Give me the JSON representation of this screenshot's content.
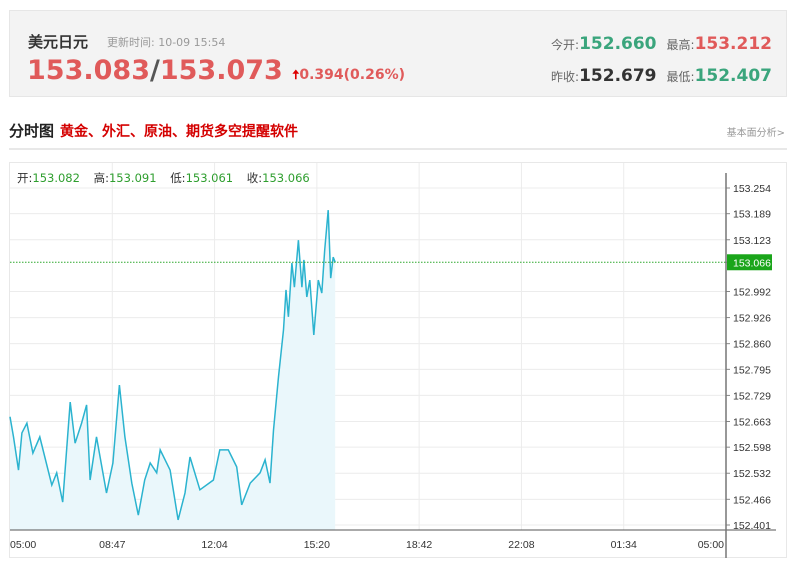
{
  "header": {
    "name": "美元日元",
    "update_label": "更新时间:",
    "update_time": "10-09 15:54",
    "bid": "153.083",
    "sep": "/",
    "ask": "153.073",
    "change": "0.394(0.26%)",
    "change_icon": "arrow-up",
    "stats": {
      "open_label": "今开:",
      "open": "152.660",
      "high_label": "最高:",
      "high": "153.212",
      "prev_label": "昨收:",
      "prev": "152.679",
      "low_label": "最低:",
      "low": "152.407"
    }
  },
  "section": {
    "title": "分时图",
    "ad": "黄金、外汇、原油、期货多空提醒软件",
    "link": "基本面分析>"
  },
  "ohlc": {
    "open_label": "开:",
    "open": "153.082",
    "high_label": "高:",
    "high": "153.091",
    "low_label": "低:",
    "low": "153.061",
    "close_label": "收:",
    "close": "153.066"
  },
  "colors": {
    "line": "#2bb3cf",
    "fill": "#eaf7fb",
    "last_badge": "#1aa51a",
    "up": "#e05a5a",
    "down": "#3aa57c"
  },
  "chart_data": {
    "type": "area",
    "x_ticks": [
      "05:00",
      "08:47",
      "12:04",
      "15:20",
      "18:42",
      "22:08",
      "01:34",
      "05:00"
    ],
    "y_ticks": [
      "153.254",
      "153.189",
      "153.123",
      "153.066",
      "152.992",
      "152.926",
      "152.860",
      "152.795",
      "152.729",
      "152.663",
      "152.598",
      "152.532",
      "152.466",
      "152.401"
    ],
    "ylim": [
      152.401,
      153.254
    ],
    "last_price": "153.066",
    "grid": true,
    "points": [
      [
        "05:00",
        152.675
      ],
      [
        "05:07",
        152.624
      ],
      [
        "05:17",
        152.54
      ],
      [
        "05:24",
        152.634
      ],
      [
        "05:34",
        152.659
      ],
      [
        "05:46",
        152.583
      ],
      [
        "06:00",
        152.624
      ],
      [
        "06:24",
        152.502
      ],
      [
        "06:34",
        152.533
      ],
      [
        "06:46",
        152.459
      ],
      [
        "07:01",
        152.712
      ],
      [
        "07:11",
        152.608
      ],
      [
        "07:24",
        152.659
      ],
      [
        "07:34",
        152.705
      ],
      [
        "07:41",
        152.515
      ],
      [
        "07:54",
        152.624
      ],
      [
        "08:14",
        152.482
      ],
      [
        "08:27",
        152.558
      ],
      [
        "08:40",
        152.755
      ],
      [
        "08:51",
        152.624
      ],
      [
        "09:05",
        152.507
      ],
      [
        "09:18",
        152.426
      ],
      [
        "09:31",
        152.515
      ],
      [
        "09:42",
        152.558
      ],
      [
        "09:55",
        152.533
      ],
      [
        "10:02",
        152.591
      ],
      [
        "10:22",
        152.54
      ],
      [
        "10:38",
        152.414
      ],
      [
        "10:52",
        152.482
      ],
      [
        "11:02",
        152.573
      ],
      [
        "11:22",
        152.49
      ],
      [
        "11:49",
        152.515
      ],
      [
        "12:02",
        152.591
      ],
      [
        "12:19",
        152.591
      ],
      [
        "12:36",
        152.548
      ],
      [
        "12:46",
        152.452
      ],
      [
        "13:03",
        152.507
      ],
      [
        "13:23",
        152.533
      ],
      [
        "13:33",
        152.566
      ],
      [
        "13:43",
        152.507
      ],
      [
        "13:50",
        152.641
      ],
      [
        "14:00",
        152.776
      ],
      [
        "14:10",
        152.895
      ],
      [
        "14:15",
        152.996
      ],
      [
        "14:20",
        152.928
      ],
      [
        "14:27",
        153.064
      ],
      [
        "14:32",
        153.003
      ],
      [
        "14:40",
        153.122
      ],
      [
        "14:47",
        153.003
      ],
      [
        "14:51",
        153.072
      ],
      [
        "14:57",
        152.978
      ],
      [
        "15:03",
        153.021
      ],
      [
        "15:11",
        152.882
      ],
      [
        "15:20",
        153.021
      ],
      [
        "15:27",
        152.988
      ],
      [
        "15:33",
        153.097
      ],
      [
        "15:40",
        153.198
      ],
      [
        "15:45",
        153.026
      ],
      [
        "15:50",
        153.079
      ],
      [
        "15:54",
        153.066
      ]
    ]
  }
}
